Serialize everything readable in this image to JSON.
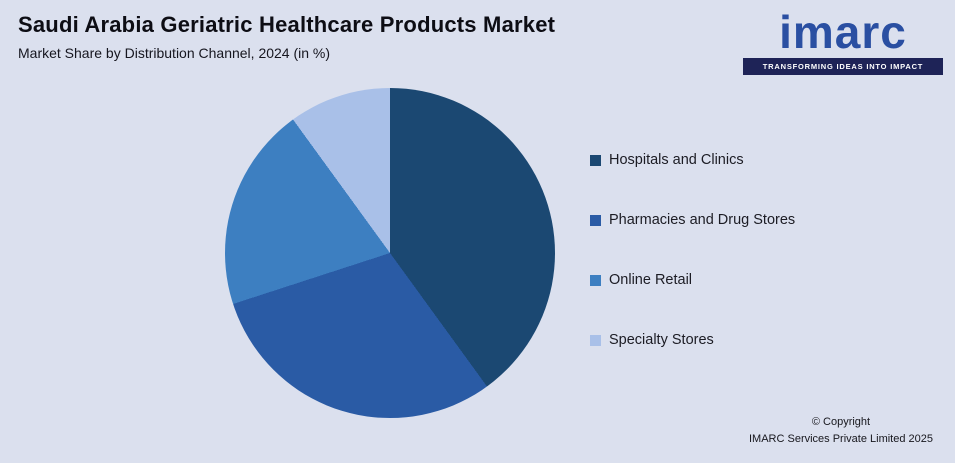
{
  "header": {
    "title": "Saudi Arabia Geriatric Healthcare Products Market",
    "subtitle": "Market Share by Distribution Channel, 2024 (in %)"
  },
  "logo": {
    "text": "imarc",
    "tagline": "TRANSFORMING IDEAS INTO IMPACT",
    "brand_color": "#2a4fa2",
    "tagline_bar_color": "#1e2357"
  },
  "chart_data": {
    "type": "pie",
    "title": "Saudi Arabia Geriatric Healthcare Products Market",
    "subtitle": "Market Share by Distribution Channel, 2024 (in %)",
    "year": "2024",
    "unit": "%",
    "categories": [
      "Hospitals and Clinics",
      "Pharmacies and Drug Stores",
      "Online Retail",
      "Specialty Stores"
    ],
    "values": [
      40,
      30,
      20,
      10
    ],
    "colors": [
      "#1b4872",
      "#2a5ba5",
      "#3d7fc1",
      "#a9c0e8"
    ],
    "start_angle_deg": 0,
    "direction": "clockwise",
    "legend_position": "right",
    "data_labels": false,
    "background_color": "#dbe0ee"
  },
  "footer": {
    "copyright_line1": "© Copyright",
    "copyright_line2": "IMARC Services Private Limited 2025"
  }
}
